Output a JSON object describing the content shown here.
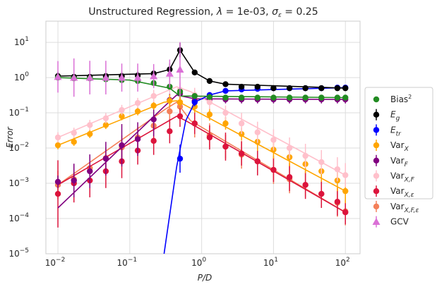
{
  "chart_data": {
    "type": "scatter",
    "title": "Unstructured Regression, λ = 1e-03, σ_ε = 0.25",
    "title_parts": [
      "Unstructured Regression, ",
      "λ",
      " = 1e-03, ",
      "σ",
      "ε",
      " = 0.25"
    ],
    "xlabel": "P/D",
    "ylabel": "Error",
    "xscale": "log",
    "yscale": "log",
    "xlim": [
      0.0068,
      160
    ],
    "ylim": [
      1e-05,
      40
    ],
    "x_ticks": [
      {
        "value": 0.01,
        "base": "10",
        "exp": "−2"
      },
      {
        "value": 0.1,
        "base": "10",
        "exp": "−1"
      },
      {
        "value": 1,
        "base": "10",
        "exp": "0"
      },
      {
        "value": 10,
        "base": "10",
        "exp": "1"
      },
      {
        "value": 100,
        "base": "10",
        "exp": "2"
      }
    ],
    "y_ticks": [
      {
        "value": 1e-05,
        "base": "10",
        "exp": "−5"
      },
      {
        "value": 0.0001,
        "base": "10",
        "exp": "−4"
      },
      {
        "value": 0.001,
        "base": "10",
        "exp": "−3"
      },
      {
        "value": 0.01,
        "base": "10",
        "exp": "−2"
      },
      {
        "value": 0.1,
        "base": "10",
        "exp": "−1"
      },
      {
        "value": 1,
        "base": "10",
        "exp": "0"
      },
      {
        "value": 10,
        "base": "10",
        "exp": "1"
      }
    ],
    "x": [
      0.01,
      0.0167,
      0.0278,
      0.0464,
      0.0774,
      0.129,
      0.215,
      0.359,
      0.5,
      0.8,
      1.29,
      2.15,
      3.59,
      5.99,
      10,
      16.7,
      27.8,
      46.4,
      77.4,
      100
    ],
    "series": [
      {
        "name": "Var_{X,F,ε}",
        "legend_base": "Var",
        "legend_sub": "X,F,ε",
        "color": "#f4805a",
        "marker": "circle",
        "values": [
          0.0009,
          0.0013,
          0.0027,
          0.0052,
          0.0105,
          0.02,
          0.043,
          0.11,
          0.15,
          0.05,
          0.023,
          0.011,
          0.0065,
          0.0042,
          0.0024,
          0.0013,
          0.0009,
          0.0005,
          0.00028,
          0.00016
        ],
        "err": [
          2.5,
          2.2,
          2.0,
          2.0,
          2.2,
          2.0,
          2.0,
          2.2,
          2.5,
          2.5,
          2.2,
          2.2,
          2.5,
          2.5,
          2.5,
          2.5,
          2.2,
          2.5,
          2.5,
          2.5
        ],
        "theory": [
          [
            0.01,
            0.0009
          ],
          [
            0.3,
            0.12
          ],
          [
            0.45,
            0.2
          ],
          [
            0.7,
            0.06
          ],
          [
            100,
            0.00015
          ]
        ]
      },
      {
        "name": "Var_{X,ε}",
        "legend_base": "Var",
        "legend_sub": "X,ε",
        "color": "#dc143c",
        "marker": "circle",
        "values": [
          0.0005,
          0.001,
          0.0012,
          0.0022,
          0.0042,
          0.0085,
          0.016,
          0.03,
          0.08,
          0.05,
          0.02,
          0.011,
          0.007,
          0.0042,
          0.0024,
          0.0015,
          0.0009,
          0.0005,
          0.0003,
          0.00015
        ],
        "err": [
          9.0,
          3.5,
          3.0,
          3.0,
          3.0,
          2.5,
          2.5,
          2.2,
          2.0,
          2.0,
          2.2,
          2.5,
          2.2,
          2.5,
          2.2,
          2.5,
          2.5,
          2.5,
          2.5,
          2.2
        ],
        "theory": [
          [
            0.01,
            0.0009
          ],
          [
            0.45,
            0.08
          ],
          [
            0.6,
            0.06
          ],
          [
            100,
            0.00015
          ]
        ]
      },
      {
        "name": "Var_F",
        "legend_base": "Var",
        "legend_sub": "F",
        "color": "#800080",
        "marker": "circle",
        "values": [
          0.0011,
          0.0012,
          0.0022,
          0.005,
          0.012,
          0.018,
          0.065,
          0.23,
          0.35,
          0.22,
          0.24,
          0.24,
          0.24,
          0.24,
          0.24,
          0.24,
          0.24,
          0.24,
          0.24,
          0.24
        ],
        "err": [
          1.5,
          3.0,
          3.0,
          3.0,
          4.0,
          3.0,
          3.0,
          1.5,
          1.4,
          1.3,
          1.3,
          1.3,
          1.3,
          1.3,
          1.3,
          1.3,
          1.3,
          1.3,
          1.3,
          1.3
        ],
        "theory": [
          [
            0.01,
            0.0002
          ],
          [
            0.3,
            0.15
          ],
          [
            0.45,
            0.32
          ],
          [
            0.8,
            0.25
          ],
          [
            100,
            0.24
          ]
        ]
      },
      {
        "name": "Var_X",
        "legend_base": "Var",
        "legend_sub": "X",
        "color": "#ffa500",
        "marker": "circle",
        "values": [
          0.012,
          0.015,
          0.025,
          0.045,
          0.08,
          0.11,
          0.16,
          0.22,
          0.2,
          0.15,
          0.09,
          0.05,
          0.025,
          0.015,
          0.009,
          0.0055,
          0.0035,
          0.0022,
          0.0012,
          0.0006
        ],
        "err": [
          1.3,
          1.3,
          1.3,
          1.3,
          1.3,
          1.3,
          1.3,
          1.5,
          1.5,
          1.5,
          1.5,
          1.5,
          1.5,
          1.8,
          1.8,
          1.8,
          1.8,
          2.0,
          2.0,
          2.2
        ],
        "theory": [
          [
            0.01,
            0.012
          ],
          [
            0.3,
            0.2
          ],
          [
            0.45,
            0.22
          ],
          [
            100,
            0.0006
          ]
        ]
      },
      {
        "name": "Var_{X,F}",
        "legend_base": "Var",
        "legend_sub": "X,F",
        "color": "#ffc0cb",
        "marker": "circle",
        "values": [
          0.02,
          0.027,
          0.045,
          0.07,
          0.12,
          0.19,
          0.3,
          0.55,
          0.45,
          0.32,
          0.2,
          0.1,
          0.05,
          0.028,
          0.017,
          0.01,
          0.006,
          0.004,
          0.0025,
          0.0017
        ],
        "err": [
          1.4,
          1.4,
          1.4,
          1.4,
          1.4,
          1.4,
          1.5,
          1.6,
          1.6,
          1.6,
          1.6,
          1.6,
          2.0,
          2.0,
          2.0,
          2.0,
          2.2,
          2.2,
          2.2,
          2.2
        ],
        "theory": [
          [
            0.01,
            0.02
          ],
          [
            0.45,
            0.55
          ],
          [
            0.7,
            0.4
          ],
          [
            100,
            0.0017
          ]
        ]
      },
      {
        "name": "E_tr",
        "legend_base": "E",
        "legend_sub": "tr",
        "color": "#0000ff",
        "marker": "circle",
        "values": [
          null,
          null,
          null,
          null,
          null,
          null,
          null,
          null,
          0.005,
          0.2,
          0.32,
          0.42,
          0.46,
          0.48,
          0.5,
          0.5,
          0.5,
          0.5,
          0.52,
          0.52
        ],
        "err": [
          1,
          1,
          1,
          1,
          1,
          1,
          1,
          1,
          2.5,
          1.3,
          1.2,
          1.15,
          1.15,
          1.15,
          1.15,
          1.15,
          1.15,
          1.15,
          1.15,
          1.15
        ],
        "theory": [
          [
            0.3,
            1e-05
          ],
          [
            0.45,
            0.003
          ],
          [
            0.6,
            0.06
          ],
          [
            0.8,
            0.2
          ],
          [
            1.29,
            0.32
          ],
          [
            2.15,
            0.42
          ],
          [
            100,
            0.52
          ]
        ]
      },
      {
        "name": "E_g",
        "legend_base": "E",
        "legend_sub": "g",
        "color": "#000000",
        "marker": "circle",
        "values": [
          1.1,
          1.05,
          1.05,
          1.1,
          1.1,
          1.15,
          1.3,
          1.7,
          6.0,
          1.4,
          0.8,
          0.65,
          0.55,
          0.55,
          0.5,
          0.5,
          0.5,
          0.5,
          0.5,
          0.5
        ],
        "err": [
          1.3,
          1.2,
          1.2,
          1.2,
          1.3,
          1.3,
          1.3,
          1.5,
          1.6,
          1.2,
          1.15,
          1.15,
          1.15,
          1.15,
          1.15,
          1.15,
          1.15,
          1.15,
          1.15,
          1.15
        ],
        "theory": [
          [
            0.01,
            1.1
          ],
          [
            0.215,
            1.3
          ],
          [
            0.359,
            1.7
          ],
          [
            0.5,
            6.0
          ],
          [
            0.8,
            1.4
          ],
          [
            1.29,
            0.8
          ],
          [
            2.15,
            0.65
          ],
          [
            100,
            0.5
          ]
        ]
      },
      {
        "name": "Bias²",
        "legend_base": "Bias",
        "legend_sup": "2",
        "color": "#228b22",
        "marker": "circle",
        "values": [
          1.0,
          0.95,
          0.95,
          0.9,
          0.85,
          0.8,
          0.7,
          0.55,
          0.4,
          0.3,
          0.28,
          0.27,
          0.27,
          0.27,
          0.27,
          0.27,
          0.27,
          0.27,
          0.27,
          0.27
        ],
        "err": [
          1,
          1,
          1,
          1,
          1,
          1,
          1,
          1,
          1,
          1,
          1,
          1,
          1,
          1,
          1,
          1,
          1,
          1,
          1,
          1
        ],
        "theory": [
          [
            0.01,
            1.0
          ],
          [
            0.1,
            0.85
          ],
          [
            0.359,
            0.5
          ],
          [
            0.5,
            0.3
          ],
          [
            100,
            0.27
          ]
        ]
      },
      {
        "name": "GCV",
        "legend_base": "GCV",
        "color": "#da70d6",
        "marker": "triangle",
        "values": [
          1.05,
          1.0,
          1.0,
          1.0,
          1.0,
          1.0,
          1.1,
          1.3,
          1.7,
          null,
          null,
          null,
          null,
          null,
          null,
          null,
          null,
          null,
          null,
          null
        ],
        "err": [
          2.8,
          3.5,
          3.0,
          3.0,
          2.5,
          2.5,
          2.2,
          2.5,
          6.0,
          1,
          1,
          1,
          1,
          1,
          1,
          1,
          1,
          1,
          1,
          1
        ],
        "theory": []
      }
    ],
    "legend_order": [
      "Bias²",
      "E_g",
      "E_tr",
      "Var_X",
      "Var_F",
      "Var_{X,F}",
      "Var_{X,ε}",
      "Var_{X,F,ε}",
      "GCV"
    ],
    "legend_position": "right",
    "grid": true
  }
}
